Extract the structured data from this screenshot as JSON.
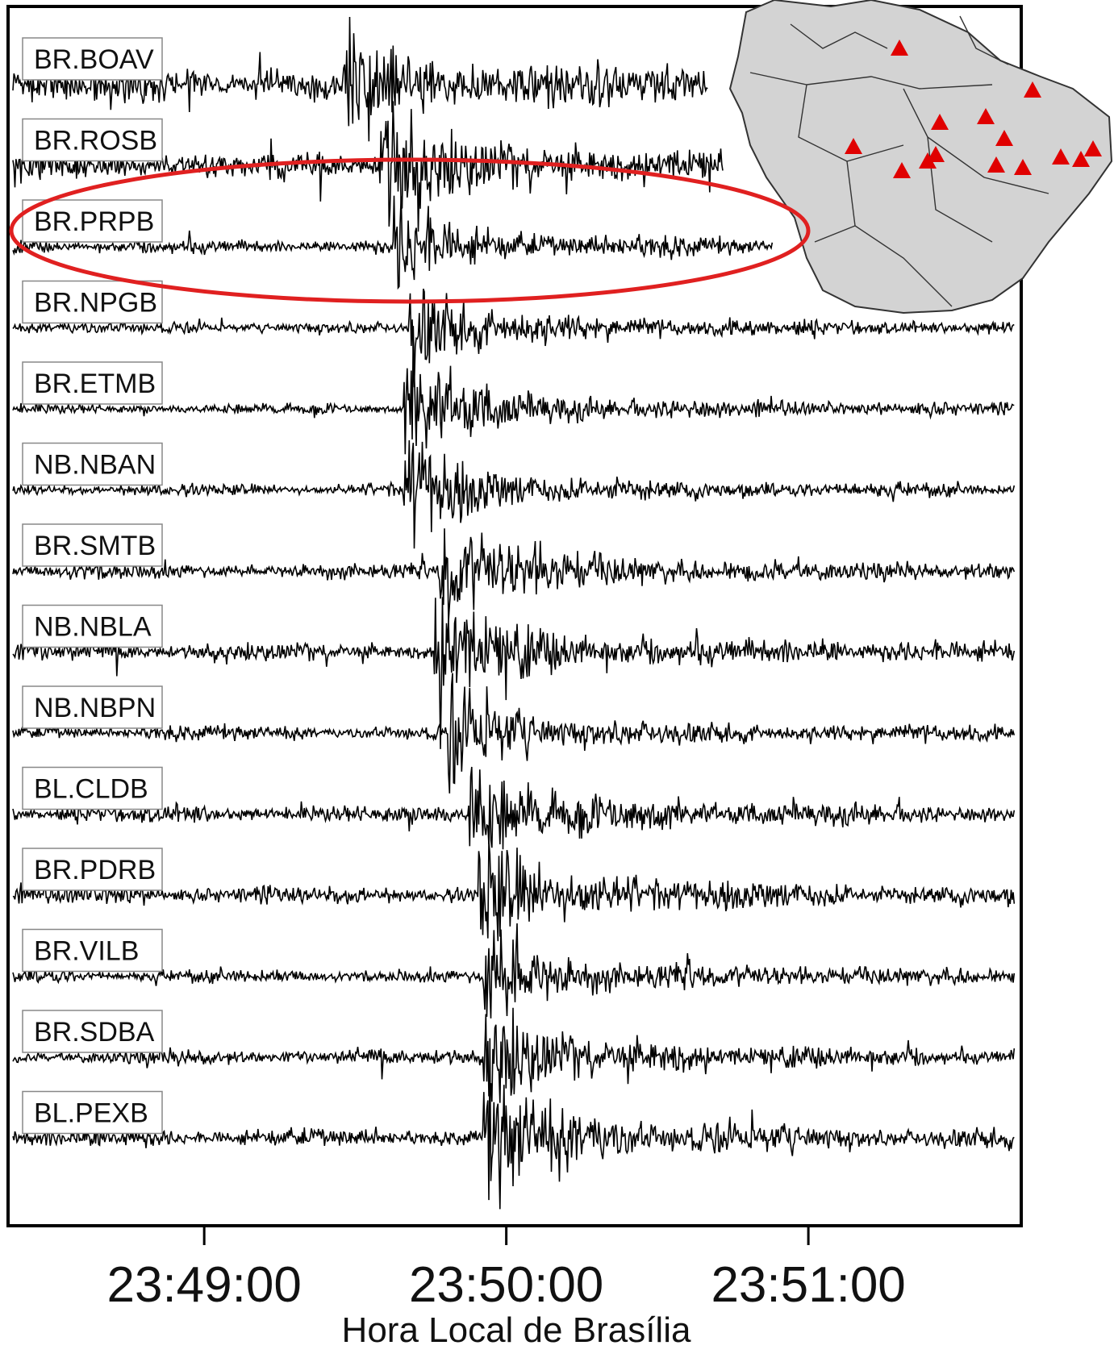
{
  "chart_data": {
    "type": "line",
    "title": "",
    "xlabel": "Hora Local de Brasília",
    "ylabel": "",
    "x_ticks": [
      "23:49:00",
      "23:50:00",
      "23:51:00"
    ],
    "xlim": [
      "23:48:22",
      "23:51:41"
    ],
    "grid": false,
    "legend": "none",
    "trace_color": "#000000",
    "highlight_color": "#e02020",
    "highlighted_station": "BR.PRPB",
    "series": [
      {
        "name": "BR.BOAV",
        "end": "23:50:40",
        "arrival": "23:49:28",
        "noise": 0.75,
        "peak": 1.0
      },
      {
        "name": "BR.ROSB",
        "end": "23:50:43",
        "arrival": "23:49:35",
        "noise": 0.55,
        "peak": 1.4
      },
      {
        "name": "BR.PRPB",
        "end": "23:50:53",
        "arrival": "23:49:38",
        "noise": 0.18,
        "peak": 1.0
      },
      {
        "name": "BR.NPGB",
        "end": "23:51:41",
        "arrival": "23:49:41",
        "noise": 0.12,
        "peak": 1.2
      },
      {
        "name": "BR.ETMB",
        "end": "23:51:41",
        "arrival": "23:49:40",
        "noise": 0.08,
        "peak": 1.4
      },
      {
        "name": "NB.NBAN",
        "end": "23:51:41",
        "arrival": "23:49:40",
        "noise": 0.14,
        "peak": 1.2
      },
      {
        "name": "BR.SMTB",
        "end": "23:51:41",
        "arrival": "23:49:47",
        "noise": 0.25,
        "peak": 1.3
      },
      {
        "name": "NB.NBLA",
        "end": "23:51:41",
        "arrival": "23:49:46",
        "noise": 0.32,
        "peak": 1.4
      },
      {
        "name": "NB.NBPN",
        "end": "23:51:41",
        "arrival": "23:49:49",
        "noise": 0.2,
        "peak": 1.1
      },
      {
        "name": "BL.CLDB",
        "end": "23:51:41",
        "arrival": "23:49:53",
        "noise": 0.28,
        "peak": 1.2
      },
      {
        "name": "BR.PDRB",
        "end": "23:51:41",
        "arrival": "23:49:55",
        "noise": 0.3,
        "peak": 1.4
      },
      {
        "name": "BR.VILB",
        "end": "23:51:41",
        "arrival": "23:49:56",
        "noise": 0.18,
        "peak": 1.2
      },
      {
        "name": "BR.SDBA",
        "end": "23:51:41",
        "arrival": "23:49:56",
        "noise": 0.22,
        "peak": 1.4
      },
      {
        "name": "BL.PEXB",
        "end": "23:51:41",
        "arrival": "23:49:56",
        "noise": 0.3,
        "peak": 1.6
      }
    ],
    "inset_map": {
      "land_color": "#d3d3d3",
      "marker_color": "#e00000",
      "marker_shape": "triangle",
      "station_count": 14
    }
  }
}
